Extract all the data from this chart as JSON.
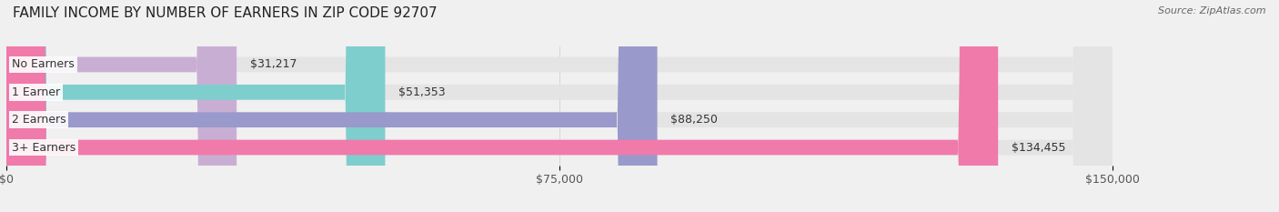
{
  "title": "FAMILY INCOME BY NUMBER OF EARNERS IN ZIP CODE 92707",
  "source": "Source: ZipAtlas.com",
  "categories": [
    "No Earners",
    "1 Earner",
    "2 Earners",
    "3+ Earners"
  ],
  "values": [
    31217,
    51353,
    88250,
    134455
  ],
  "bar_colors": [
    "#c9aed4",
    "#7ecece",
    "#9999cc",
    "#f07aaa"
  ],
  "bar_labels": [
    "$31,217",
    "$51,353",
    "$88,250",
    "$134,455"
  ],
  "xlim": [
    0,
    150000
  ],
  "xticks": [
    0,
    75000,
    150000
  ],
  "xticklabels": [
    "$0",
    "$75,000",
    "$150,000"
  ],
  "background_color": "#f0f0f0",
  "bar_bg_color": "#e4e4e4",
  "title_fontsize": 11,
  "label_fontsize": 9,
  "tick_fontsize": 9,
  "bar_height": 0.55,
  "figsize": [
    14.06,
    2.33
  ],
  "dpi": 100
}
